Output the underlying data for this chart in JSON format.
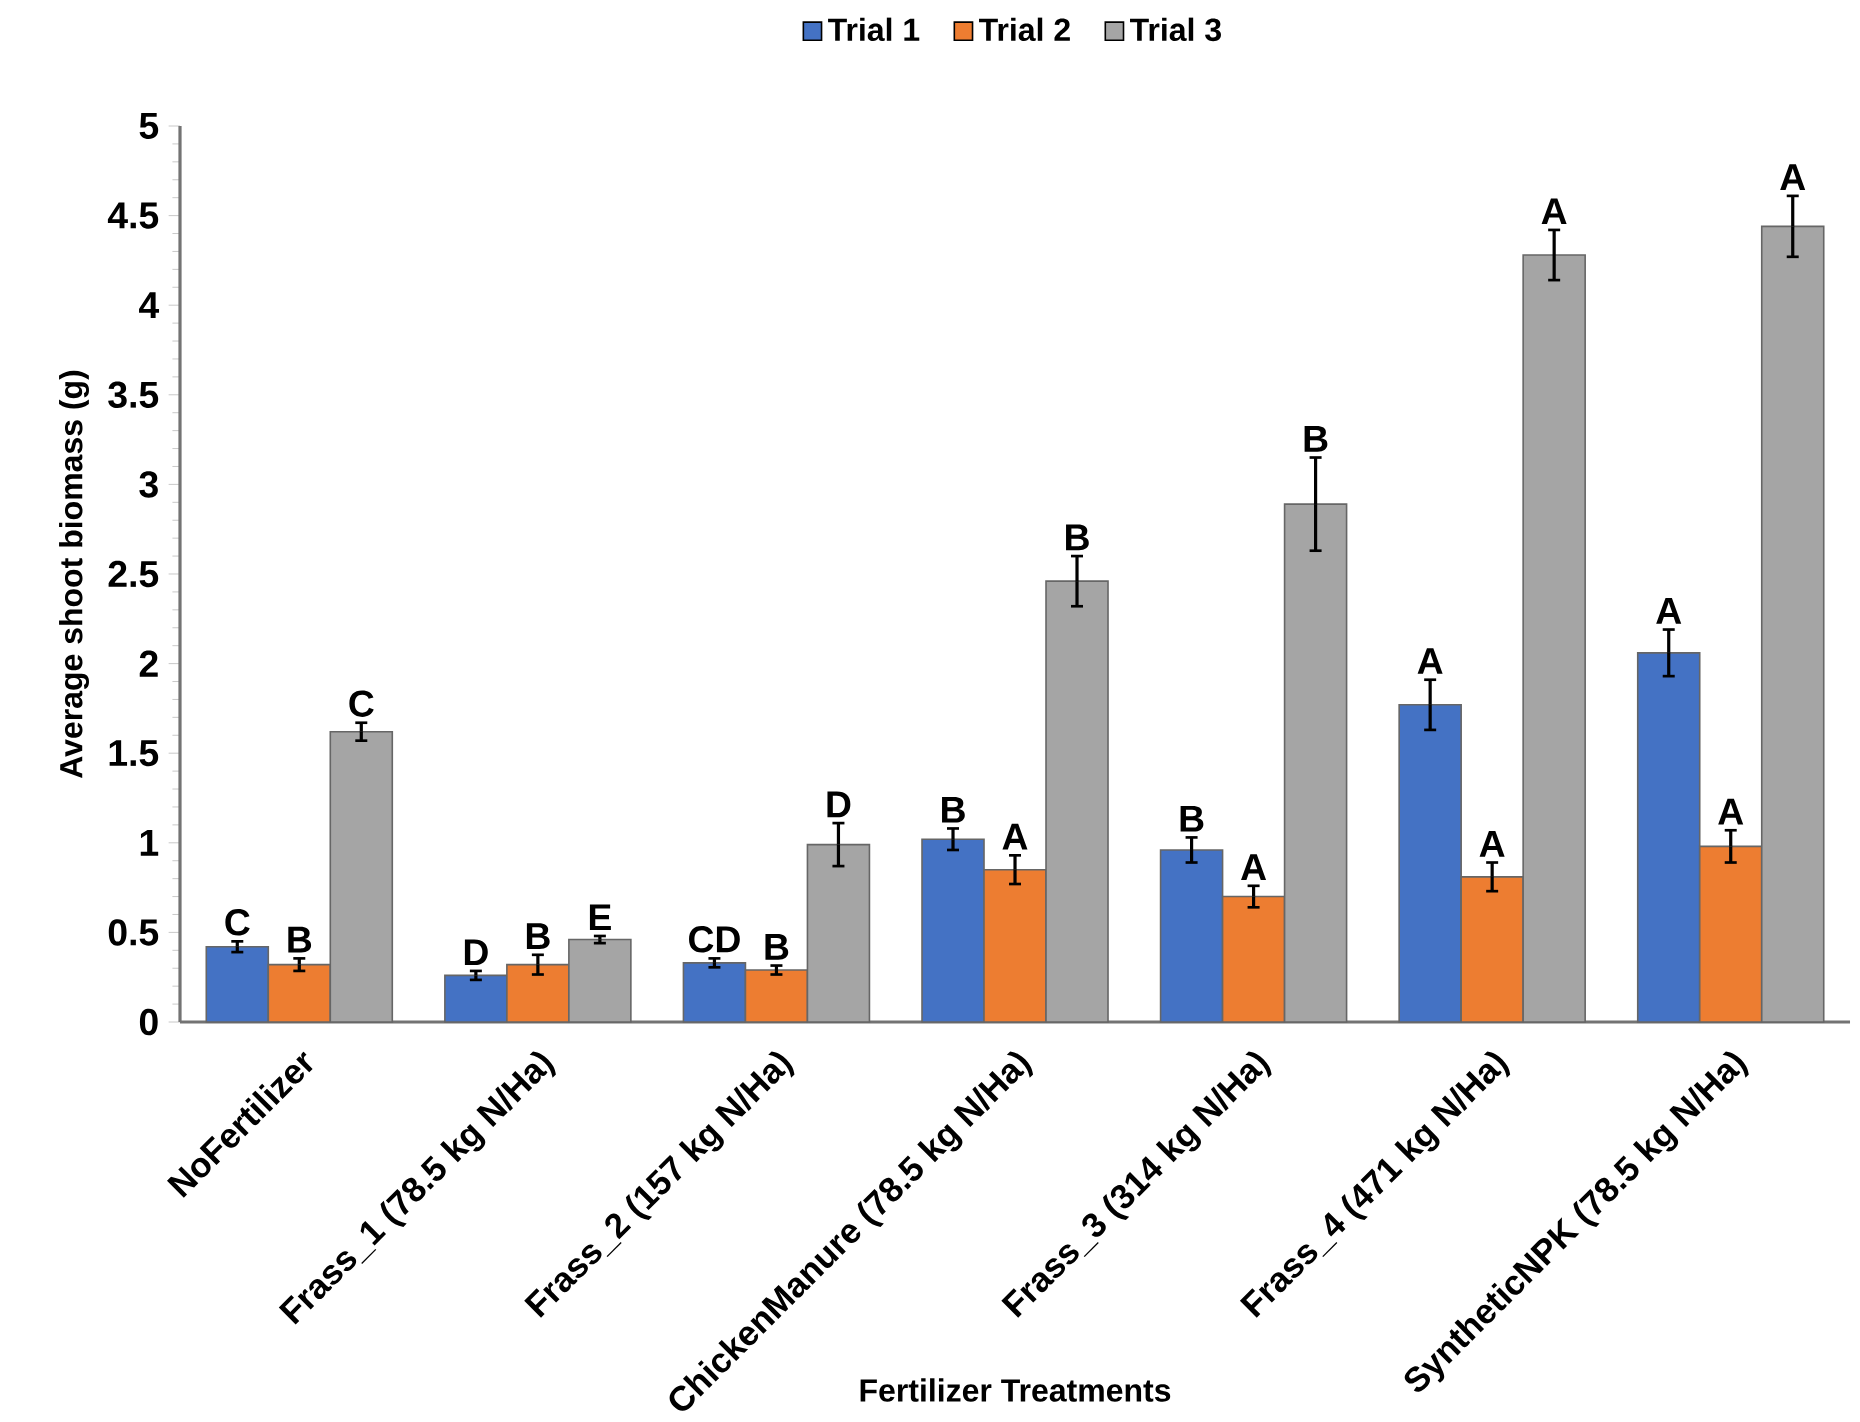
{
  "chart_data": {
    "type": "bar",
    "xlabel": "Fertilizer Treatments",
    "ylabel": "Average shoot biomass (g)",
    "categories": [
      "NoFertilizer",
      "Frass_1 (78.5 kg N/Ha)",
      "Frass_2 (157 kg N/Ha)",
      "ChickenManure (78.5 kg N/Ha)",
      "Frass_3 (314 kg N/Ha)",
      "Frass_4 (471 kg N/Ha)",
      "SyntheticNPK (78.5 kg N/Ha)"
    ],
    "series": [
      {
        "name": "Trial 1",
        "color": "#4472c4",
        "values": [
          0.42,
          0.26,
          0.33,
          1.02,
          0.96,
          1.77,
          2.06
        ],
        "errors": [
          0.03,
          0.025,
          0.025,
          0.06,
          0.07,
          0.14,
          0.13
        ]
      },
      {
        "name": "Trial 2",
        "color": "#ed7d31",
        "values": [
          0.32,
          0.32,
          0.29,
          0.85,
          0.7,
          0.81,
          0.98
        ],
        "errors": [
          0.035,
          0.055,
          0.025,
          0.08,
          0.06,
          0.08,
          0.09
        ]
      },
      {
        "name": "Trial 3",
        "color": "#a5a5a5",
        "values": [
          1.62,
          0.46,
          0.99,
          2.46,
          2.89,
          4.28,
          4.44
        ],
        "errors": [
          0.05,
          0.02,
          0.12,
          0.14,
          0.26,
          0.14,
          0.17
        ]
      }
    ],
    "ylim": [
      0,
      5
    ],
    "yticks": [
      0,
      0.5,
      1,
      1.5,
      2,
      2.5,
      3,
      3.5,
      4,
      4.5,
      5
    ],
    "legend": "top",
    "annotations": [
      "C",
      "B",
      "C",
      "D",
      "B",
      "E",
      "CD",
      "B",
      "D",
      "B",
      "A",
      "B",
      "B",
      "A",
      "B",
      "A",
      "A",
      "A",
      "A",
      "A",
      "A"
    ]
  }
}
